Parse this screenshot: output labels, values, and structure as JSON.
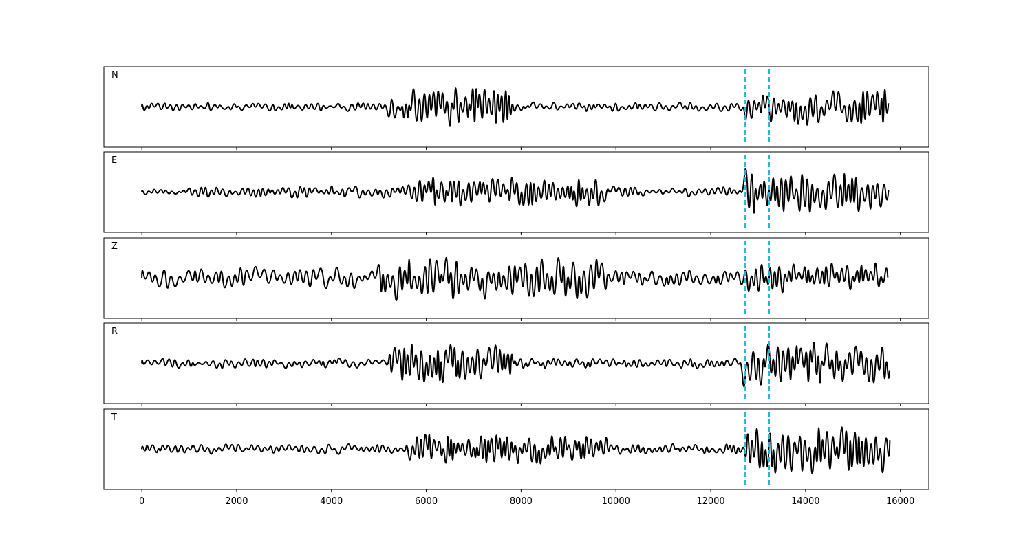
{
  "chart_data": {
    "type": "line",
    "xlim": [
      -800,
      16600
    ],
    "x_ticks": [
      0,
      2000,
      4000,
      6000,
      8000,
      10000,
      12000,
      14000,
      16000
    ],
    "sample_count": 15800,
    "vertical_markers": {
      "color": "#17becf",
      "style": "dashed",
      "x": [
        12730,
        13230
      ]
    },
    "trace_color": "#000000",
    "grid": false,
    "series": [
      {
        "name": "N",
        "segments": [
          {
            "x0": 0,
            "x1": 5200,
            "amp": 0.16,
            "per": 130
          },
          {
            "x0": 5200,
            "x1": 5700,
            "amp": 0.4,
            "per": 90
          },
          {
            "x0": 5700,
            "x1": 7800,
            "amp": 0.72,
            "per": 95
          },
          {
            "x0": 7800,
            "x1": 12700,
            "amp": 0.17,
            "per": 125
          },
          {
            "x0": 12700,
            "x1": 15800,
            "amp": 0.7,
            "per": 100
          }
        ]
      },
      {
        "name": "E",
        "segments": [
          {
            "x0": 0,
            "x1": 1000,
            "amp": 0.1,
            "per": 120
          },
          {
            "x0": 1000,
            "x1": 5600,
            "amp": 0.22,
            "per": 120
          },
          {
            "x0": 5600,
            "x1": 9800,
            "amp": 0.55,
            "per": 95
          },
          {
            "x0": 9800,
            "x1": 12700,
            "amp": 0.2,
            "per": 115
          },
          {
            "x0": 12700,
            "x1": 15800,
            "amp": 0.85,
            "per": 100
          }
        ]
      },
      {
        "name": "Z",
        "segments": [
          {
            "x0": 0,
            "x1": 5000,
            "amp": 0.4,
            "per": 150
          },
          {
            "x0": 5000,
            "x1": 9800,
            "amp": 0.82,
            "per": 110
          },
          {
            "x0": 9800,
            "x1": 12700,
            "amp": 0.3,
            "per": 130
          },
          {
            "x0": 12700,
            "x1": 15800,
            "amp": 0.55,
            "per": 100
          }
        ]
      },
      {
        "name": "R",
        "segments": [
          {
            "x0": 0,
            "x1": 5200,
            "amp": 0.18,
            "per": 130
          },
          {
            "x0": 5200,
            "x1": 7800,
            "amp": 0.72,
            "per": 95
          },
          {
            "x0": 7800,
            "x1": 12700,
            "amp": 0.18,
            "per": 125
          },
          {
            "x0": 12700,
            "x1": 15800,
            "amp": 0.78,
            "per": 100
          }
        ]
      },
      {
        "name": "T",
        "segments": [
          {
            "x0": 0,
            "x1": 5600,
            "amp": 0.18,
            "per": 125
          },
          {
            "x0": 5600,
            "x1": 9800,
            "amp": 0.55,
            "per": 95
          },
          {
            "x0": 9800,
            "x1": 12700,
            "amp": 0.2,
            "per": 120
          },
          {
            "x0": 12700,
            "x1": 15800,
            "amp": 0.88,
            "per": 95
          }
        ]
      }
    ]
  }
}
